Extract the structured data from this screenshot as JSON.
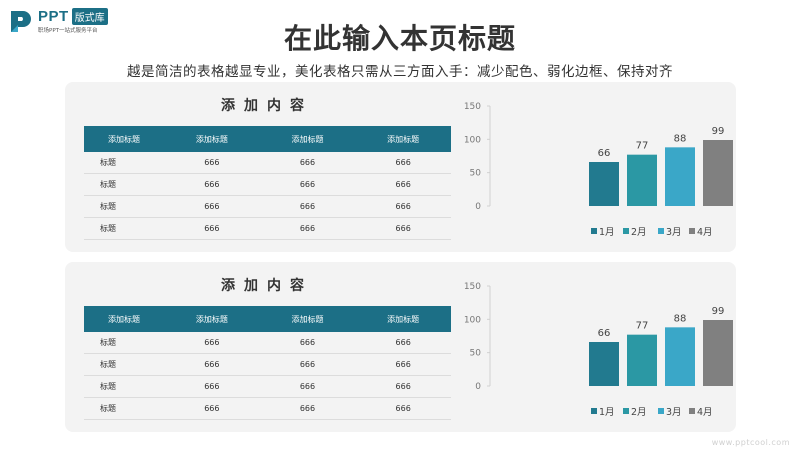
{
  "logo": {
    "mark": "P",
    "text": "PPT",
    "badge": "版式库",
    "subtitle": "职场PPT一站式服务平台"
  },
  "title": "在此输入本页标题",
  "subtitle": "越是简洁的表格越显专业，美化表格只需从三方面入手：减少配色、弱化边框、保持对齐",
  "panels": [
    {
      "heading": "添加内容",
      "table": {
        "headers": [
          "添加标题",
          "添加标题",
          "添加标题",
          "添加标题"
        ],
        "rows": [
          [
            "标题",
            "666",
            "666",
            "666"
          ],
          [
            "标题",
            "666",
            "666",
            "666"
          ],
          [
            "标题",
            "666",
            "666",
            "666"
          ],
          [
            "标题",
            "666",
            "666",
            "666"
          ]
        ]
      }
    },
    {
      "heading": "添加内容",
      "table": {
        "headers": [
          "添加标题",
          "添加标题",
          "添加标题",
          "添加标题"
        ],
        "rows": [
          [
            "标题",
            "666",
            "666",
            "666"
          ],
          [
            "标题",
            "666",
            "666",
            "666"
          ],
          [
            "标题",
            "666",
            "666",
            "666"
          ],
          [
            "标题",
            "666",
            "666",
            "666"
          ]
        ]
      }
    }
  ],
  "chart_data": [
    {
      "type": "bar",
      "categories": [
        "1月",
        "2月",
        "3月",
        "4月"
      ],
      "values": [
        66,
        77,
        88,
        99
      ],
      "colors": [
        "#227a8f",
        "#2b98a4",
        "#3aa7c8",
        "#808080"
      ],
      "yticks": [
        0,
        50,
        100,
        150
      ],
      "ylim": [
        0,
        150
      ],
      "grid": false,
      "legend": "bottom"
    },
    {
      "type": "bar",
      "categories": [
        "1月",
        "2月",
        "3月",
        "4月"
      ],
      "values": [
        66,
        77,
        88,
        99
      ],
      "colors": [
        "#227a8f",
        "#2b98a4",
        "#3aa7c8",
        "#808080"
      ],
      "yticks": [
        0,
        50,
        100,
        150
      ],
      "ylim": [
        0,
        150
      ],
      "grid": false,
      "legend": "bottom"
    }
  ],
  "footer": "www.pptcool.com"
}
